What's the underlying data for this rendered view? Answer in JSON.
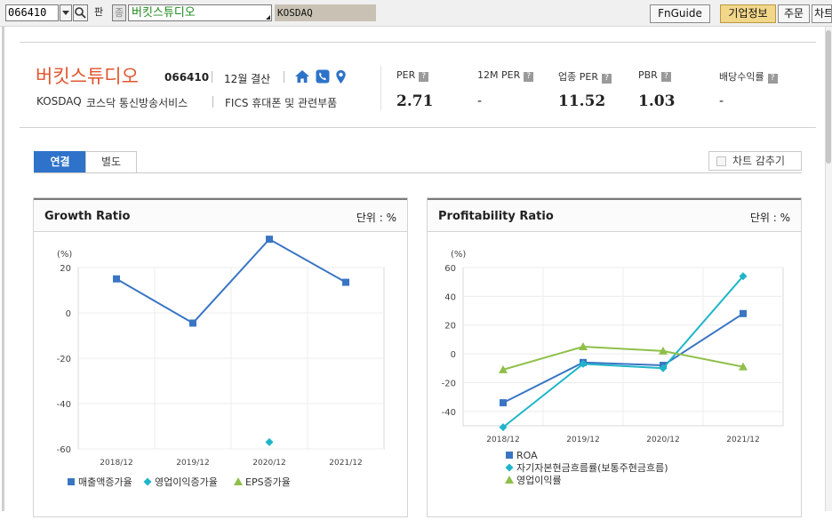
{
  "toolbar": {
    "code": "066410",
    "code_button": "판",
    "name_prefix": "종",
    "company_name": "버킷스튜디오",
    "market": "KOSDAQ",
    "menu": [
      {
        "label": "FnGuide",
        "active": false
      },
      {
        "label": "기업정보",
        "active": true
      },
      {
        "label": "주문",
        "active": false
      },
      {
        "label": "차트",
        "active": false
      }
    ]
  },
  "header": {
    "company_name": "버킷스튜디오",
    "ticker": "066410",
    "settlement": "12월 결산",
    "market": "KOSDAQ",
    "sector": "코스닥 통신방송서비스",
    "fics": "FICS 휴대폰 및 관련부품",
    "icons": [
      "home-icon",
      "phone-icon",
      "location-icon"
    ],
    "metrics": [
      {
        "label": "PER",
        "value": "2.71"
      },
      {
        "label": "12M PER",
        "value": "-"
      },
      {
        "label": "업종 PER",
        "value": "11.52"
      },
      {
        "label": "PBR",
        "value": "1.03"
      },
      {
        "label": "배당수익률",
        "value": "-"
      }
    ]
  },
  "tabs": [
    {
      "label": "연결",
      "active": true
    },
    {
      "label": "별도",
      "active": false
    }
  ],
  "hide_chart_label": "차트 감추기",
  "colors": {
    "accent": "#e1552f",
    "tab": "#2e73c9",
    "series1": "#3a75c4",
    "series2": "#1fb5c9",
    "series3": "#8fbf4a"
  },
  "chart_data": [
    {
      "type": "line",
      "title": "Growth Ratio",
      "unit_label": "단위 : %",
      "ylabel": "(%)",
      "categories": [
        "2018/12",
        "2019/12",
        "2020/12",
        "2021/12"
      ],
      "ylim": [
        -60,
        20
      ],
      "yticks": [
        20,
        0,
        -20,
        -40,
        -60
      ],
      "grid": true,
      "legend": "bottom",
      "series": [
        {
          "name": "매출액증가율",
          "marker": "square",
          "color": "#3a75c4",
          "values": [
            15,
            -4.5,
            32.5,
            13.5
          ]
        },
        {
          "name": "영업이익증가율",
          "marker": "diamond",
          "color": "#1fb5c9",
          "values": [
            null,
            null,
            -57,
            null
          ]
        },
        {
          "name": "EPS증가율",
          "marker": "triangle",
          "color": "#8fbf4a",
          "values": [
            null,
            null,
            null,
            null
          ]
        }
      ]
    },
    {
      "type": "line",
      "title": "Profitability Ratio",
      "unit_label": "단위 : %",
      "ylabel": "(%)",
      "categories": [
        "2018/12",
        "2019/12",
        "2020/12",
        "2021/12"
      ],
      "ylim": [
        -50,
        60
      ],
      "yticks": [
        60,
        40,
        20,
        0,
        -20,
        -40
      ],
      "grid": true,
      "legend": "bottom",
      "series": [
        {
          "name": "ROA",
          "marker": "square",
          "color": "#3a75c4",
          "values": [
            -34,
            -6,
            -8,
            28
          ]
        },
        {
          "name": "자기자본현금흐름률(보통주현금흐름)",
          "marker": "diamond",
          "color": "#1fb5c9",
          "values": [
            -51,
            -7,
            -10,
            54
          ]
        },
        {
          "name": "영업이익률",
          "marker": "triangle",
          "color": "#8fbf4a",
          "values": [
            -11,
            5,
            2,
            -9
          ]
        }
      ]
    }
  ]
}
